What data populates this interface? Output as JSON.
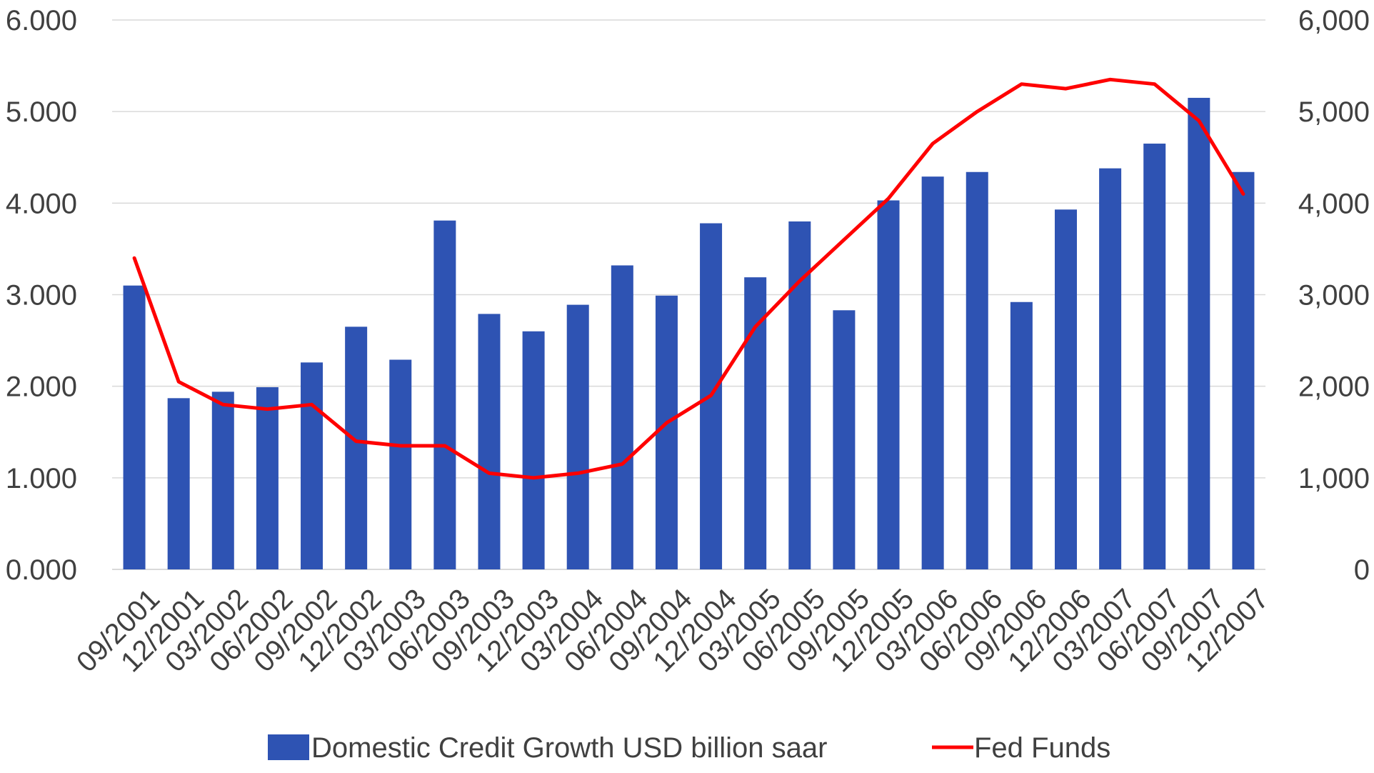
{
  "chart_data": {
    "type": "bar",
    "categories": [
      "09/2001",
      "12/2001",
      "03/2002",
      "06/2002",
      "09/2002",
      "12/2002",
      "03/2003",
      "06/2003",
      "09/2003",
      "12/2003",
      "03/2004",
      "06/2004",
      "09/2004",
      "12/2004",
      "03/2005",
      "06/2005",
      "09/2005",
      "12/2005",
      "03/2006",
      "06/2006",
      "09/2006",
      "12/2006",
      "03/2007",
      "06/2007",
      "09/2007",
      "12/2007"
    ],
    "series": [
      {
        "name": "Domestic Credit Growth USD billion saar",
        "type": "bar",
        "axis": "left",
        "color": "#2E53B3",
        "values": [
          3.1,
          1.87,
          1.94,
          1.99,
          2.26,
          2.65,
          2.29,
          3.81,
          2.79,
          2.6,
          2.89,
          3.32,
          2.99,
          3.78,
          3.19,
          3.8,
          2.83,
          4.03,
          4.29,
          4.34,
          2.92,
          3.93,
          4.38,
          4.65,
          5.15,
          4.34
        ]
      },
      {
        "name": "Fed Funds",
        "type": "line",
        "axis": "right",
        "color": "#FF0000",
        "values": [
          3.4,
          2.05,
          1.8,
          1.75,
          1.8,
          1.4,
          1.35,
          1.35,
          1.05,
          1.0,
          1.05,
          1.15,
          1.6,
          1.9,
          2.65,
          3.15,
          3.6,
          4.05,
          4.65,
          5.0,
          5.3,
          5.25,
          5.35,
          5.3,
          4.9,
          4.1
        ]
      }
    ],
    "y_left": {
      "range": [
        0,
        6
      ],
      "ticks": [
        0,
        1,
        2,
        3,
        4,
        5,
        6
      ],
      "tick_labels": [
        "0.000",
        "1.000",
        "2.000",
        "3.000",
        "4.000",
        "5.000",
        "6.000"
      ]
    },
    "y_right": {
      "range": [
        0,
        6
      ],
      "ticks": [
        0,
        1,
        2,
        3,
        4,
        5,
        6
      ],
      "tick_labels": [
        "0",
        "1,000",
        "2,000",
        "3,000",
        "4,000",
        "5,000",
        "6,000"
      ]
    },
    "title": "",
    "xlabel": "",
    "ylabel": "",
    "grid": true,
    "gridline_color": "#D9D9D9",
    "legend_position": "bottom",
    "x_tick_rotation": "-45"
  }
}
